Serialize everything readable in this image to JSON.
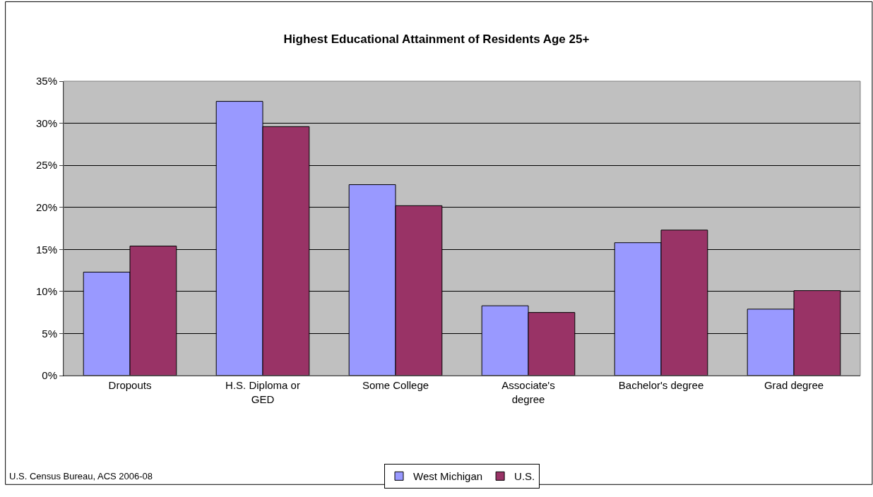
{
  "chart_data": {
    "type": "bar",
    "title": "Highest Educational Attainment of Residents Age 25+",
    "categories": [
      "Dropouts",
      "H.S. Diploma or GED",
      "Some College",
      "Associate's degree",
      "Bachelor's degree",
      "Grad degree"
    ],
    "series": [
      {
        "name": "West Michigan",
        "color": "#9999ff",
        "values": [
          12.3,
          32.6,
          22.7,
          8.3,
          15.8,
          7.9
        ]
      },
      {
        "name": "U.S.",
        "color": "#993366",
        "values": [
          15.4,
          29.6,
          20.2,
          7.5,
          17.3,
          10.1
        ]
      }
    ],
    "ylim": [
      0,
      35
    ],
    "yticks": [
      {
        "value": 0,
        "label": "0%"
      },
      {
        "value": 5,
        "label": "5%"
      },
      {
        "value": 10,
        "label": "10%"
      },
      {
        "value": 15,
        "label": "15%"
      },
      {
        "value": 20,
        "label": "20%"
      },
      {
        "value": 25,
        "label": "25%"
      },
      {
        "value": 30,
        "label": "30%"
      },
      {
        "value": 35,
        "label": "35%"
      }
    ],
    "grid": "y",
    "legend": "bottom",
    "annotations": [
      "U.S. Census Bureau, ACS 2006-08"
    ]
  }
}
